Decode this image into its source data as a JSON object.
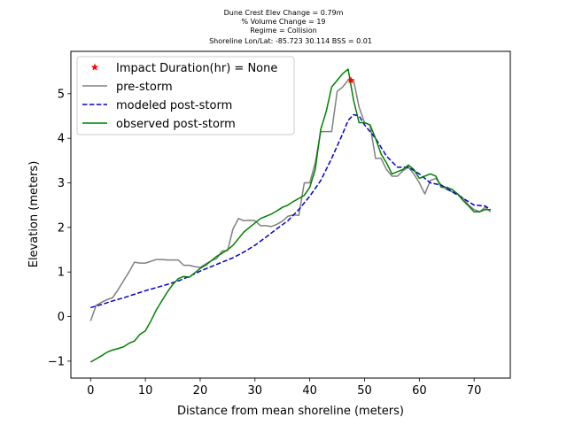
{
  "chart_data": {
    "type": "line",
    "title_lines": [
      "Dune Crest Elev Change = 0.79m",
      "% Volume Change = 19",
      "Regime = Collision",
      "Shoreline Lon/Lat: -85.723 30.114   BSS = 0.01"
    ],
    "xlabel": "Distance from mean shoreline (meters)",
    "ylabel": "Elevation (meters)",
    "xlim": [
      -3.6,
      76.6
    ],
    "ylim": [
      -1.38,
      5.95
    ],
    "xticks": [
      0,
      10,
      20,
      30,
      40,
      50,
      60,
      70
    ],
    "yticks": [
      -1,
      0,
      1,
      2,
      3,
      4,
      5
    ],
    "grid": false,
    "legend_position": "top-left",
    "marker_point": {
      "name": "Impact Duration(hr) = None",
      "x": 47.5,
      "y": 5.3,
      "color": "#ff0000",
      "marker": "star"
    },
    "series": [
      {
        "name": "pre-storm",
        "color": "#808080",
        "dash": "solid",
        "x": [
          0,
          1,
          2,
          3,
          4,
          5,
          6,
          7,
          8,
          9,
          10,
          11,
          12,
          13,
          14,
          15,
          16,
          17,
          18,
          19,
          20,
          21,
          22,
          23,
          24,
          25,
          26,
          27,
          28,
          29,
          30,
          31,
          32,
          33,
          34,
          35,
          36,
          37,
          38,
          39,
          40,
          41,
          42,
          43,
          44,
          45,
          46,
          47,
          48,
          49,
          50,
          51,
          52,
          53,
          54,
          55,
          56,
          57,
          58,
          59,
          60,
          61,
          62,
          63,
          64,
          65,
          66,
          67,
          68,
          69,
          70,
          71,
          72,
          73
        ],
        "y": [
          -0.1,
          0.25,
          0.32,
          0.38,
          0.42,
          0.6,
          0.8,
          1.0,
          1.22,
          1.2,
          1.2,
          1.24,
          1.28,
          1.28,
          1.27,
          1.27,
          1.27,
          1.15,
          1.15,
          1.12,
          1.1,
          1.18,
          1.25,
          1.3,
          1.47,
          1.48,
          1.97,
          2.2,
          2.15,
          2.16,
          2.15,
          2.04,
          2.04,
          2.02,
          2.07,
          2.14,
          2.25,
          2.28,
          2.27,
          3.0,
          3.0,
          3.45,
          4.15,
          4.15,
          4.15,
          5.05,
          5.15,
          5.3,
          5.3,
          4.7,
          4.35,
          4.3,
          3.55,
          3.55,
          3.3,
          3.15,
          3.15,
          3.27,
          3.35,
          3.2,
          3.0,
          2.75,
          3.05,
          3.1,
          2.95,
          2.85,
          2.8,
          2.75,
          2.65,
          2.5,
          2.4,
          2.35,
          2.45,
          2.35
        ]
      },
      {
        "name": "modeled post-storm",
        "color": "#0000cc",
        "dash": "dashed",
        "x": [
          0,
          2,
          4,
          6,
          8,
          10,
          12,
          14,
          16,
          18,
          20,
          22,
          24,
          26,
          28,
          30,
          32,
          34,
          36,
          38,
          40,
          42,
          44,
          46,
          47,
          48,
          49,
          50,
          52,
          54,
          56,
          58,
          60,
          62,
          64,
          66,
          68,
          70,
          72,
          73
        ],
        "y": [
          0.2,
          0.27,
          0.35,
          0.42,
          0.5,
          0.58,
          0.65,
          0.72,
          0.8,
          0.9,
          1.02,
          1.12,
          1.22,
          1.32,
          1.45,
          1.6,
          1.78,
          1.97,
          2.15,
          2.4,
          2.7,
          3.05,
          3.55,
          4.1,
          4.4,
          4.53,
          4.5,
          4.3,
          4.0,
          3.6,
          3.35,
          3.35,
          3.2,
          3.0,
          2.95,
          2.8,
          2.65,
          2.5,
          2.48,
          2.4
        ]
      },
      {
        "name": "observed post-storm",
        "color": "#008000",
        "dash": "solid",
        "x": [
          0,
          1,
          2,
          3,
          4,
          5,
          6,
          7,
          8,
          9,
          10,
          11,
          12,
          13,
          14,
          15,
          16,
          17,
          18,
          19,
          20,
          21,
          22,
          23,
          24,
          25,
          26,
          27,
          28,
          29,
          30,
          31,
          32,
          33,
          34,
          35,
          36,
          37,
          38,
          39,
          40,
          41,
          42,
          43,
          44,
          45,
          46,
          47,
          48,
          49,
          50,
          51,
          52,
          53,
          54,
          55,
          56,
          57,
          58,
          59,
          60,
          61,
          62,
          63,
          64,
          65,
          66,
          67,
          68,
          69,
          70,
          71,
          72,
          73
        ],
        "y": [
          -1.02,
          -0.95,
          -0.88,
          -0.8,
          -0.75,
          -0.72,
          -0.68,
          -0.6,
          -0.55,
          -0.4,
          -0.32,
          -0.1,
          0.15,
          0.35,
          0.55,
          0.72,
          0.85,
          0.9,
          0.88,
          0.98,
          1.08,
          1.15,
          1.25,
          1.35,
          1.42,
          1.5,
          1.6,
          1.75,
          1.9,
          2.0,
          2.1,
          2.2,
          2.25,
          2.3,
          2.37,
          2.45,
          2.5,
          2.58,
          2.65,
          2.72,
          2.9,
          3.3,
          4.2,
          4.6,
          5.15,
          5.3,
          5.45,
          5.55,
          4.85,
          4.35,
          4.35,
          4.3,
          4.0,
          3.65,
          3.45,
          3.2,
          3.25,
          3.3,
          3.4,
          3.3,
          3.1,
          3.15,
          3.2,
          3.15,
          2.9,
          2.9,
          2.85,
          2.75,
          2.6,
          2.48,
          2.35,
          2.35,
          2.4,
          2.4
        ]
      }
    ]
  }
}
